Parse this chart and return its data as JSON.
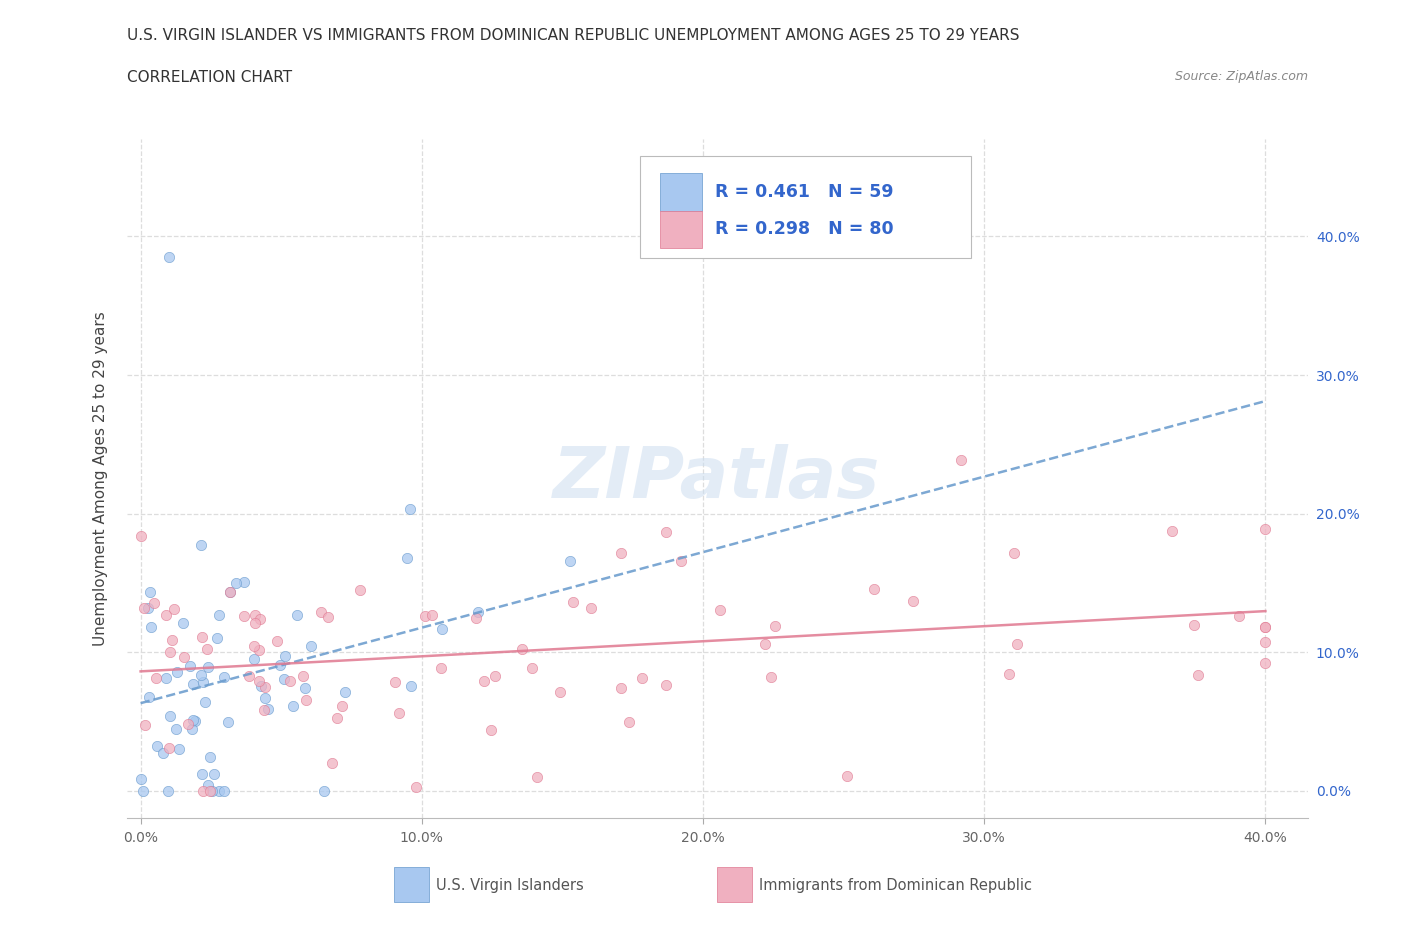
{
  "title_line1": "U.S. VIRGIN ISLANDER VS IMMIGRANTS FROM DOMINICAN REPUBLIC UNEMPLOYMENT AMONG AGES 25 TO 29 YEARS",
  "title_line2": "CORRELATION CHART",
  "source_text": "Source: ZipAtlas.com",
  "ylabel": "Unemployment Among Ages 25 to 29 years",
  "legend1_label": "U.S. Virgin Islanders",
  "legend2_label": "Immigrants from Dominican Republic",
  "R1": 0.461,
  "N1": 59,
  "R2": 0.298,
  "N2": 80,
  "color_blue_fill": "#a8c8f0",
  "color_blue_edge": "#6699cc",
  "color_blue_line": "#6699cc",
  "color_pink_fill": "#f0b0c0",
  "color_pink_edge": "#e07890",
  "color_pink_line": "#e07890",
  "color_legend_text": "#3366cc",
  "color_right_ytick": "#3366cc",
  "watermark_text": "ZIPatlas",
  "background": "#ffffff",
  "grid_color": "#dddddd",
  "x_ticks": [
    0.0,
    0.1,
    0.2,
    0.3,
    0.4
  ],
  "y_ticks": [
    0.0,
    0.1,
    0.2,
    0.3,
    0.4
  ],
  "xlim": [
    -0.005,
    0.415
  ],
  "ylim": [
    -0.02,
    0.47
  ]
}
